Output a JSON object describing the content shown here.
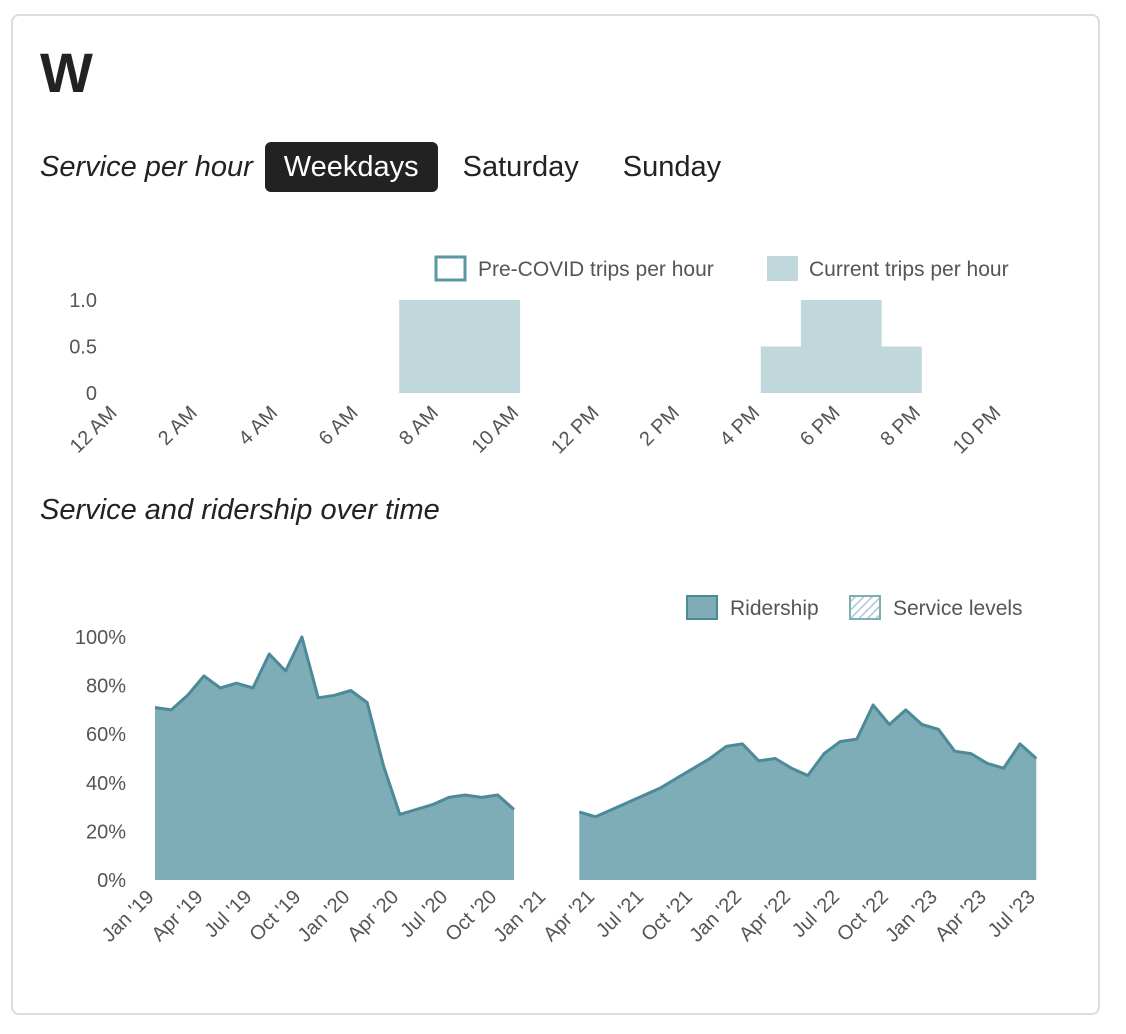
{
  "route": {
    "title": "W"
  },
  "service_tabs": {
    "label": "Service per hour",
    "options": [
      "Weekdays",
      "Saturday",
      "Sunday"
    ],
    "selected": "Weekdays"
  },
  "trend_section": {
    "title": "Service and ridership over time"
  },
  "colors": {
    "current_fill": "#c0d8dc",
    "precovid_stroke": "#5a98a4",
    "ridership_fill": "#7eacb7",
    "ridership_stroke": "#4c8a98",
    "tab_active_bg": "#222222"
  },
  "chart_data": [
    {
      "type": "bar",
      "title": "Service per hour",
      "legend": [
        "Pre-COVID trips per hour",
        "Current trips per hour"
      ],
      "legend_position": "top-right",
      "x_hours": [
        0,
        1,
        2,
        3,
        4,
        5,
        6,
        7,
        8,
        9,
        10,
        11,
        12,
        13,
        14,
        15,
        16,
        17,
        18,
        19,
        20,
        21,
        22,
        23
      ],
      "x_tick_labels": [
        "12 AM",
        "2 AM",
        "4 AM",
        "6 AM",
        "8 AM",
        "10 AM",
        "12 PM",
        "2 PM",
        "4 PM",
        "6 PM",
        "8 PM",
        "10 PM"
      ],
      "y_tick_labels": [
        "0",
        "0.5",
        "1.0"
      ],
      "ylim": [
        0,
        1
      ],
      "series": [
        {
          "name": "Current trips per hour",
          "values": [
            0,
            0,
            0,
            0,
            0,
            0,
            0,
            1,
            1,
            1,
            0,
            0,
            0,
            0,
            0,
            0,
            0.5,
            1,
            1,
            0.5,
            0,
            0,
            0,
            0
          ]
        },
        {
          "name": "Pre-COVID trips per hour",
          "values": [
            0,
            0,
            0,
            0,
            0,
            0,
            0,
            0,
            0,
            0,
            0,
            0,
            0,
            0,
            0,
            0,
            0,
            0,
            0,
            0,
            0,
            0,
            0,
            0
          ]
        }
      ]
    },
    {
      "type": "area",
      "title": "Service and ridership over time",
      "legend": [
        "Ridership",
        "Service levels"
      ],
      "legend_position": "top-right",
      "x_tick_labels": [
        "Jan '19",
        "Apr '19",
        "Jul '19",
        "Oct '19",
        "Jan '20",
        "Apr '20",
        "Jul '20",
        "Oct '20",
        "Jan '21",
        "Apr '21",
        "Jul '21",
        "Oct '21",
        "Jan '22",
        "Apr '22",
        "Jul '22",
        "Oct '22",
        "Jan '23",
        "Apr '23",
        "Jul '23"
      ],
      "y_tick_labels": [
        "0%",
        "20%",
        "40%",
        "60%",
        "80%",
        "100%"
      ],
      "ylim": [
        0,
        100
      ],
      "series": [
        {
          "name": "Ridership",
          "segments": [
            {
              "start": "Jan '19",
              "values": [
                71,
                70,
                76,
                84,
                79,
                81,
                79,
                93,
                86,
                100,
                75,
                76,
                78,
                73,
                47,
                27,
                29,
                31,
                34,
                35,
                34,
                35,
                29
              ]
            },
            {
              "start": "Mar '21",
              "values": [
                28,
                26,
                29,
                32,
                35,
                38,
                42,
                46,
                50,
                55,
                56,
                49,
                50,
                46,
                43,
                52,
                57,
                58,
                72,
                64,
                70,
                64,
                62,
                53,
                52,
                48,
                46,
                56,
                50
              ]
            }
          ]
        }
      ]
    }
  ]
}
